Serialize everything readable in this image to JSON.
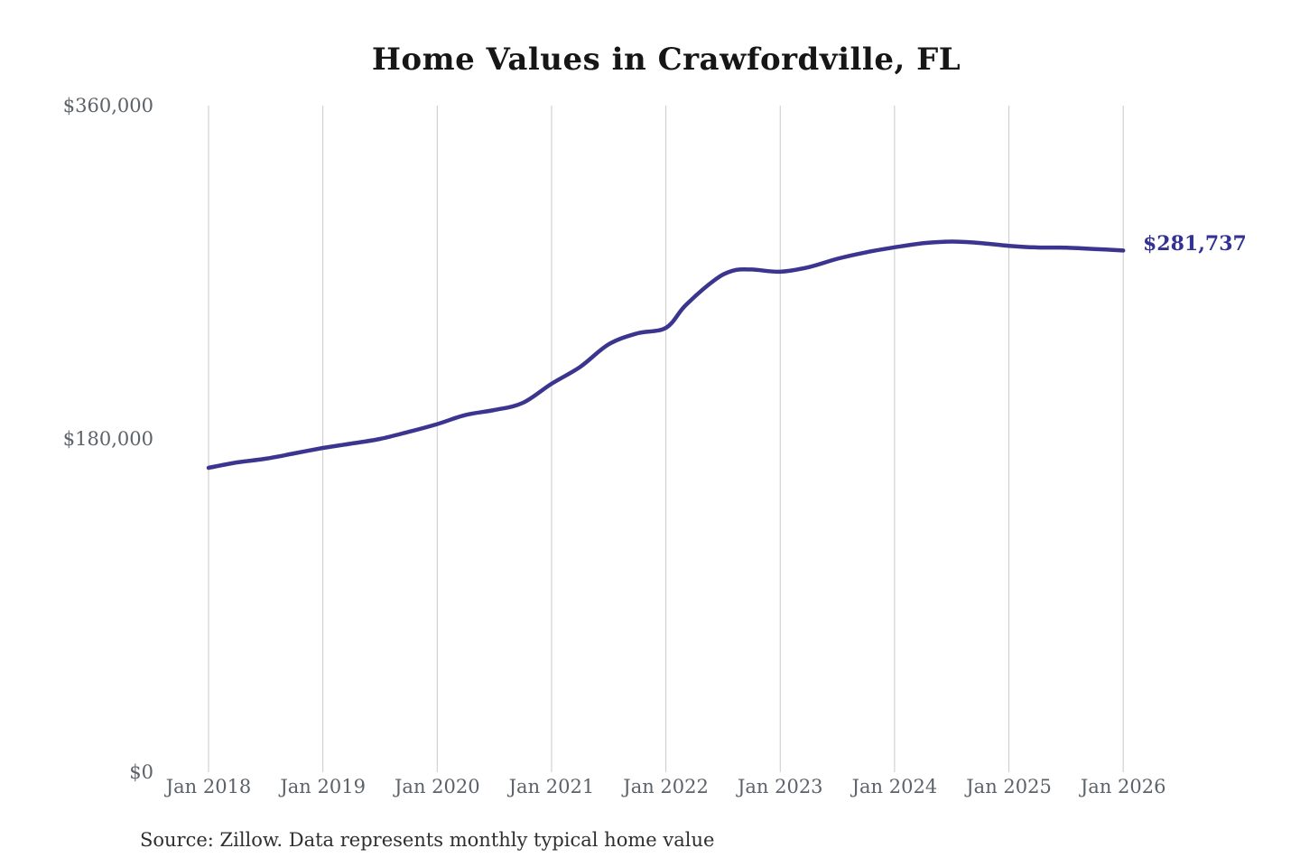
{
  "chart_data": {
    "type": "line",
    "title": "Home Values in Crawfordville, FL",
    "source": "Source: Zillow. Data represents monthly typical home value",
    "end_label": "$281,737",
    "end_value": 281737,
    "xlabel": "",
    "ylabel": "",
    "xlim": [
      2018,
      2026
    ],
    "ylim": [
      0,
      360000
    ],
    "grid": "vertical-only",
    "legend": "none",
    "x_ticks": [
      {
        "x": 2018,
        "label": "Jan 2018"
      },
      {
        "x": 2019,
        "label": "Jan 2019"
      },
      {
        "x": 2020,
        "label": "Jan 2020"
      },
      {
        "x": 2021,
        "label": "Jan 2021"
      },
      {
        "x": 2022,
        "label": "Jan 2022"
      },
      {
        "x": 2023,
        "label": "Jan 2023"
      },
      {
        "x": 2024,
        "label": "Jan 2024"
      },
      {
        "x": 2025,
        "label": "Jan 2025"
      },
      {
        "x": 2026,
        "label": "Jan 2026"
      }
    ],
    "y_ticks": [
      {
        "value": 0,
        "label": "$0"
      },
      {
        "value": 180000,
        "label": "$180,000"
      },
      {
        "value": 360000,
        "label": "$360,000"
      }
    ],
    "colors": {
      "line": "#3b3590",
      "end_label": "#333193",
      "grid": "#c9c9c9",
      "axis_text": "#5b6269",
      "title_text": "#161616",
      "source_text": "#2f2f2f",
      "background": "#ffffff"
    },
    "series": [
      {
        "name": "Monthly typical home value",
        "points": [
          [
            2018.0,
            164400
          ],
          [
            2018.25,
            167300
          ],
          [
            2018.5,
            169300
          ],
          [
            2018.75,
            172200
          ],
          [
            2019.0,
            175100
          ],
          [
            2019.25,
            177500
          ],
          [
            2019.5,
            180000
          ],
          [
            2019.75,
            183800
          ],
          [
            2020.0,
            188000
          ],
          [
            2020.25,
            193000
          ],
          [
            2020.5,
            195600
          ],
          [
            2020.75,
            199500
          ],
          [
            2021.0,
            209800
          ],
          [
            2021.25,
            218900
          ],
          [
            2021.5,
            231100
          ],
          [
            2021.75,
            237000
          ],
          [
            2022.0,
            240000
          ],
          [
            2022.17,
            252000
          ],
          [
            2022.42,
            265500
          ],
          [
            2022.58,
            270800
          ],
          [
            2022.75,
            271500
          ],
          [
            2023.0,
            270300
          ],
          [
            2023.25,
            272800
          ],
          [
            2023.5,
            277300
          ],
          [
            2023.75,
            280800
          ],
          [
            2024.0,
            283500
          ],
          [
            2024.25,
            285700
          ],
          [
            2024.5,
            286600
          ],
          [
            2024.75,
            285800
          ],
          [
            2025.0,
            284300
          ],
          [
            2025.25,
            283400
          ],
          [
            2025.5,
            283300
          ],
          [
            2025.75,
            282600
          ],
          [
            2026.0,
            281737
          ]
        ]
      }
    ]
  }
}
